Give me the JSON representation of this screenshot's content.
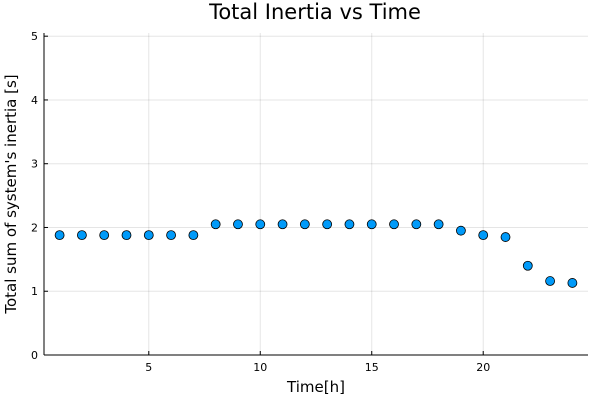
{
  "chart_data": {
    "type": "scatter",
    "title": "Total Inertia vs Time",
    "xlabel": "Time[h]",
    "ylabel": "Total sum of system's inertia [s]",
    "xlim": [
      0.3,
      24.7
    ],
    "ylim": [
      0,
      5.05
    ],
    "xticks": [
      5,
      10,
      15,
      20
    ],
    "yticks": [
      0,
      1,
      2,
      3,
      4,
      5
    ],
    "grid": true,
    "legend": "none",
    "marker_color": "#009af9",
    "series": [
      {
        "x": [
          1,
          2,
          3,
          4,
          5,
          6,
          7,
          8,
          9,
          10,
          11,
          12,
          13,
          14,
          15,
          16,
          17,
          18,
          19,
          20,
          21,
          22,
          23,
          24
        ],
        "y": [
          1.88,
          1.88,
          1.88,
          1.88,
          1.88,
          1.88,
          1.88,
          2.05,
          2.05,
          2.05,
          2.05,
          2.05,
          2.05,
          2.05,
          2.05,
          2.05,
          2.05,
          2.05,
          1.95,
          1.88,
          1.85,
          1.4,
          1.16,
          1.13
        ]
      }
    ]
  }
}
